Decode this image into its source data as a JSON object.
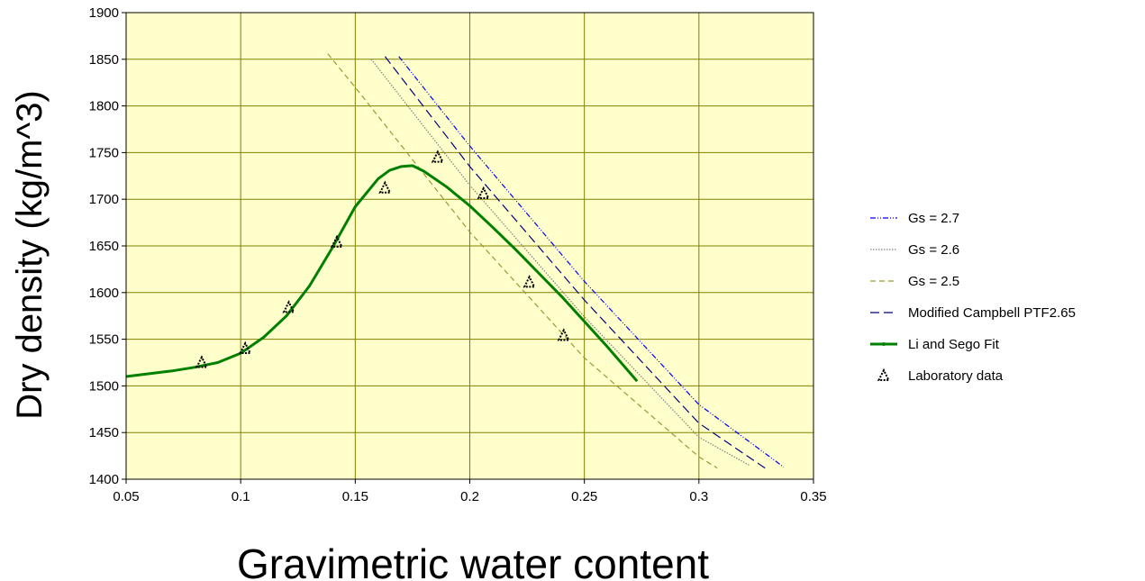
{
  "chart_data": {
    "type": "line",
    "title": "",
    "xlabel": "Gravimetric water content",
    "ylabel": "Dry density (kg/m^3)",
    "xlim": [
      0.05,
      0.35
    ],
    "ylim": [
      1400,
      1900
    ],
    "x_ticks": [
      "0.05",
      "0.1",
      "0.15",
      "0.2",
      "0.25",
      "0.3",
      "0.35"
    ],
    "y_ticks": [
      "1400",
      "1450",
      "1500",
      "1550",
      "1600",
      "1650",
      "1700",
      "1750",
      "1800",
      "1850",
      "1900"
    ],
    "grid": true,
    "plot_background": "#ffffcc",
    "grid_color": "#808000",
    "legend_position": "right",
    "series": [
      {
        "name": "Gs = 2.7",
        "color": "#0000ff",
        "style": "dash-dot-dot",
        "x": [
          0.169,
          0.2,
          0.25,
          0.3,
          0.337
        ],
        "y": [
          1853,
          1757,
          1612,
          1480,
          1413
        ]
      },
      {
        "name": "Gs = 2.6",
        "color": "#808080",
        "style": "dotted",
        "x": [
          0.157,
          0.2,
          0.25,
          0.3,
          0.322
        ],
        "y": [
          1850,
          1715,
          1574,
          1445,
          1415
        ]
      },
      {
        "name": "Gs = 2.5",
        "color": "#999933",
        "style": "dashed",
        "x": [
          0.138,
          0.15,
          0.2,
          0.25,
          0.3,
          0.308
        ],
        "y": [
          1856,
          1820,
          1665,
          1530,
          1424,
          1412
        ]
      },
      {
        "name": "Modified Campbell PTF2.65",
        "color": "#000080",
        "style": "long-dash",
        "x": [
          0.163,
          0.2,
          0.25,
          0.3,
          0.33
        ],
        "y": [
          1853,
          1735,
          1592,
          1460,
          1410
        ]
      },
      {
        "name": "Li and Sego Fit",
        "color": "#008000",
        "style": "solid",
        "x": [
          0.05,
          0.06,
          0.07,
          0.08,
          0.09,
          0.1,
          0.11,
          0.12,
          0.13,
          0.14,
          0.15,
          0.16,
          0.165,
          0.17,
          0.175,
          0.18,
          0.19,
          0.2,
          0.21,
          0.22,
          0.23,
          0.24,
          0.25,
          0.26,
          0.273
        ],
        "y": [
          1510,
          1513,
          1516,
          1520,
          1525,
          1535,
          1552,
          1575,
          1607,
          1648,
          1692,
          1722,
          1731,
          1735,
          1736,
          1730,
          1713,
          1693,
          1670,
          1646,
          1621,
          1596,
          1569,
          1542,
          1505
        ]
      }
    ],
    "scatter": {
      "name": "Laboratory data",
      "color": "#000000",
      "marker": "triangle-open",
      "x": [
        0.083,
        0.102,
        0.121,
        0.142,
        0.163,
        0.186,
        0.206,
        0.226,
        0.241
      ],
      "y": [
        1525,
        1540,
        1584,
        1654,
        1712,
        1745,
        1706,
        1611,
        1554
      ]
    }
  }
}
